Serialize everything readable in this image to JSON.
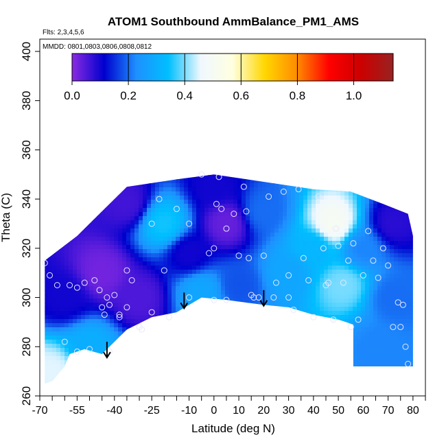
{
  "chart_data": {
    "type": "heatmap",
    "title": "ATOM1 Southbound AmmBalance_PM1_AMS",
    "subtitle_flights": "Flts: 2,3,4,5,6",
    "subtitle_dates": "MMDD: 0801,0803,0806,0808,0812",
    "xlabel": "Latitude (deg N)",
    "ylabel": "Theta (C)",
    "xlim": [
      -70,
      85
    ],
    "ylim": [
      260,
      405
    ],
    "x_tick_labels": [
      "-70",
      "-55",
      "-40",
      "-25",
      "-10",
      "0",
      "10",
      "20",
      "30",
      "40",
      "50",
      "60",
      "70",
      "80"
    ],
    "x_tick_values": [
      -70,
      -55,
      -40,
      -25,
      -10,
      0,
      10,
      20,
      30,
      40,
      50,
      60,
      70,
      80
    ],
    "x_minor_ticks": [
      -65,
      -60,
      -50,
      -45,
      -35,
      -30,
      -20,
      -15,
      -5,
      5,
      15,
      25,
      35,
      45,
      55,
      65,
      75,
      85
    ],
    "y_tick_labels": [
      "260",
      "280",
      "300",
      "320",
      "340",
      "360",
      "380",
      "400"
    ],
    "y_tick_values": [
      260,
      280,
      300,
      320,
      340,
      360,
      380,
      400
    ],
    "colorbar": {
      "range": [
        0,
        1.14
      ],
      "tick_labels": [
        "0.0",
        "0.2",
        "0.4",
        "0.6",
        "0.8",
        "1.0"
      ],
      "tick_values": [
        0.0,
        0.2,
        0.4,
        0.6,
        0.8,
        1.0
      ],
      "colors": [
        "#8a2be2",
        "#0000cd",
        "#1e90ff",
        "#00bfff",
        "#f0f8ff",
        "#ffffe0",
        "#ffd700",
        "#ff8c00",
        "#ff0000",
        "#cc0000",
        "#992222"
      ]
    },
    "field_outline": [
      [
        -68,
        315
      ],
      [
        -55,
        325
      ],
      [
        -45,
        335
      ],
      [
        -35,
        345
      ],
      [
        -15,
        348
      ],
      [
        0,
        350
      ],
      [
        20,
        347
      ],
      [
        40,
        344
      ],
      [
        55,
        343
      ],
      [
        68,
        338
      ],
      [
        78,
        334
      ],
      [
        80,
        325
      ],
      [
        80,
        272
      ],
      [
        56,
        272
      ],
      [
        56,
        289
      ],
      [
        50,
        291
      ],
      [
        40,
        293
      ],
      [
        30,
        296
      ],
      [
        20,
        297
      ],
      [
        5,
        299
      ],
      [
        -5,
        300
      ],
      [
        -15,
        294
      ],
      [
        -25,
        292
      ],
      [
        -35,
        287
      ],
      [
        -45,
        277
      ],
      [
        -52,
        279
      ],
      [
        -58,
        277
      ],
      [
        -60,
        272
      ],
      [
        -65,
        266
      ],
      [
        -68,
        265
      ]
    ],
    "field_nodes": [
      {
        "lat": -60,
        "theta": 300,
        "value": 0.1
      },
      {
        "lat": -50,
        "theta": 280,
        "value": 0.3
      },
      {
        "lat": -65,
        "theta": 270,
        "value": 0.45
      },
      {
        "lat": -45,
        "theta": 310,
        "value": 0.02
      },
      {
        "lat": -30,
        "theta": 300,
        "value": 0.05
      },
      {
        "lat": -20,
        "theta": 330,
        "value": 0.35
      },
      {
        "lat": -10,
        "theta": 318,
        "value": 0.1
      },
      {
        "lat": -5,
        "theta": 302,
        "value": 0.28
      },
      {
        "lat": 5,
        "theta": 330,
        "value": 0.03
      },
      {
        "lat": 10,
        "theta": 305,
        "value": 0.18
      },
      {
        "lat": 20,
        "theta": 335,
        "value": 0.2
      },
      {
        "lat": 30,
        "theta": 310,
        "value": 0.28
      },
      {
        "lat": 40,
        "theta": 320,
        "value": 0.32
      },
      {
        "lat": 48,
        "theta": 330,
        "value": 0.5
      },
      {
        "lat": 52,
        "theta": 305,
        "value": 0.4
      },
      {
        "lat": 60,
        "theta": 320,
        "value": 0.22
      },
      {
        "lat": 72,
        "theta": 300,
        "value": 0.2
      },
      {
        "lat": 72,
        "theta": 330,
        "value": 0.08
      },
      {
        "lat": 65,
        "theta": 280,
        "value": 0.22
      },
      {
        "lat": -35,
        "theta": 338,
        "value": 0.06
      },
      {
        "lat": 0,
        "theta": 345,
        "value": 0.1
      }
    ],
    "observations": [
      [
        -68,
        314
      ],
      [
        -66,
        309
      ],
      [
        -63,
        305
      ],
      [
        -58,
        305
      ],
      [
        -55,
        304
      ],
      [
        -52,
        306
      ],
      [
        -48,
        307
      ],
      [
        -46,
        303
      ],
      [
        -45,
        296
      ],
      [
        -44,
        293
      ],
      [
        -43,
        300
      ],
      [
        -42,
        297
      ],
      [
        -40,
        301
      ],
      [
        -38,
        292
      ],
      [
        -35,
        311
      ],
      [
        -33,
        307
      ],
      [
        -30,
        288
      ],
      [
        -29,
        287
      ],
      [
        -25,
        330
      ],
      [
        -22,
        340
      ],
      [
        -20,
        311
      ],
      [
        -18,
        292
      ],
      [
        -15,
        336
      ],
      [
        -10,
        330
      ],
      [
        -5,
        350
      ],
      [
        -2,
        318
      ],
      [
        0,
        320
      ],
      [
        1,
        338
      ],
      [
        2,
        349
      ],
      [
        3,
        336
      ],
      [
        5,
        328
      ],
      [
        8,
        334
      ],
      [
        10,
        317
      ],
      [
        12,
        345
      ],
      [
        13,
        335
      ],
      [
        14,
        316
      ],
      [
        16,
        300
      ],
      [
        18,
        300
      ],
      [
        20,
        317
      ],
      [
        22,
        341
      ],
      [
        24,
        300
      ],
      [
        28,
        343
      ],
      [
        30,
        309
      ],
      [
        32,
        295
      ],
      [
        34,
        344
      ],
      [
        36,
        316
      ],
      [
        38,
        307
      ],
      [
        40,
        292
      ],
      [
        42,
        341
      ],
      [
        44,
        320
      ],
      [
        46,
        306
      ],
      [
        48,
        291
      ],
      [
        49,
        328
      ],
      [
        50,
        321
      ],
      [
        52,
        306
      ],
      [
        54,
        315
      ],
      [
        56,
        322
      ],
      [
        58,
        291
      ],
      [
        60,
        309
      ],
      [
        62,
        327
      ],
      [
        64,
        315
      ],
      [
        66,
        308
      ],
      [
        68,
        320
      ],
      [
        70,
        313
      ],
      [
        72,
        288
      ],
      [
        74,
        298
      ],
      [
        76,
        297
      ],
      [
        77,
        280
      ],
      [
        78,
        273
      ],
      [
        -60,
        282
      ],
      [
        -55,
        278
      ],
      [
        -50,
        279
      ],
      [
        -42,
        278
      ],
      [
        -38,
        293
      ],
      [
        -35,
        296
      ],
      [
        -25,
        294
      ],
      [
        -10,
        300
      ],
      [
        0,
        299
      ],
      [
        5,
        299
      ],
      [
        15,
        301
      ],
      [
        25,
        306
      ],
      [
        45,
        305
      ],
      [
        55,
        288
      ],
      [
        75,
        288
      ],
      [
        30,
        300
      ]
    ],
    "arrows": [
      {
        "lat": -43,
        "theta": 282
      },
      {
        "lat": -12,
        "theta": 302
      },
      {
        "lat": 20,
        "theta": 303
      }
    ]
  }
}
